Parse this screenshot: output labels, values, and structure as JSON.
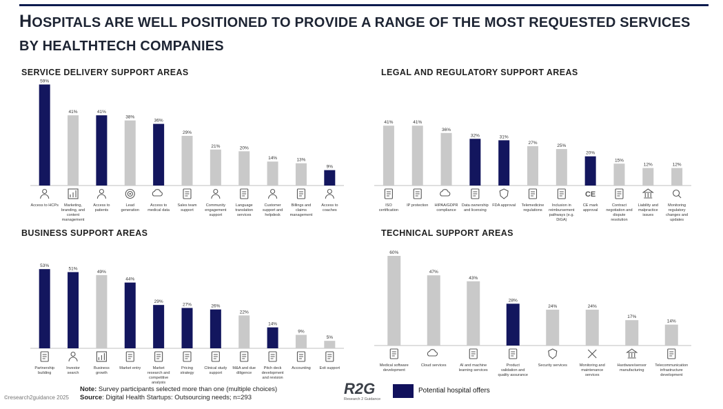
{
  "title": {
    "first_letter": "H",
    "rest": "ospitals are well positioned to provide a range of the most requested services by healthtech companies"
  },
  "colors": {
    "highlight": "#13165e",
    "normal": "#c9c9c9",
    "axis": "#bfbfbf"
  },
  "chart_data": [
    {
      "type": "bar",
      "title": "SERVICE DELIVERY SUPPORT AREAS",
      "categories": [
        "Access to HCPs",
        "Marketing, branding, and content management",
        "Access to patients",
        "Lead generation",
        "Access to medical data",
        "Sales team support",
        "Community engagement support",
        "Language translation services",
        "Customer support and helpdesk",
        "Billings and claims management",
        "Access to coaches"
      ],
      "values": [
        59,
        41,
        41,
        38,
        36,
        29,
        21,
        20,
        14,
        13,
        9
      ],
      "value_labels": [
        "59%",
        "41%",
        "41%",
        "38%",
        "36%",
        "29%",
        "21%",
        "20%",
        "14%",
        "13%",
        "9%"
      ],
      "highlighted": [
        true,
        false,
        true,
        false,
        true,
        false,
        false,
        false,
        false,
        false,
        true
      ],
      "icons": [
        "doctor-icon",
        "megaphone-icon",
        "patient-icon",
        "target-icon",
        "cloud-lock-icon",
        "box-icon",
        "people-icon",
        "translate-icon",
        "headset-icon",
        "invoice-icon",
        "coach-icon"
      ],
      "ylim": [
        0,
        60
      ]
    },
    {
      "type": "bar",
      "title": "LEGAL AND REGULATORY SUPPORT AREAS",
      "categories": [
        "ISO certification",
        "IP protection",
        "HIPAA/GDPR compliance",
        "Data ownership and licensing",
        "FDA approval",
        "Telemedicine regulations",
        "Inclusion in reimbursement pathways (e.g. DiGA)",
        "CE mark approval",
        "Contract negotiation and dispute resolution",
        "Liability and malpractice issues",
        "Monitoring regulatory changes and updates"
      ],
      "values": [
        41,
        41,
        36,
        32,
        31,
        27,
        25,
        20,
        15,
        12,
        12
      ],
      "value_labels": [
        "41%",
        "41%",
        "36%",
        "32%",
        "31%",
        "27%",
        "25%",
        "20%",
        "15%",
        "12%",
        "12%"
      ],
      "highlighted": [
        false,
        false,
        false,
        true,
        true,
        false,
        false,
        true,
        false,
        false,
        false
      ],
      "icons": [
        "certificate-icon",
        "id-card-icon",
        "gdpr-cloud-icon",
        "folder-icon",
        "fda-badge-icon",
        "telemedicine-icon",
        "document-list-icon",
        "ce-mark-icon",
        "handshake-icon",
        "court-icon",
        "magnifier-icon"
      ],
      "ylim": [
        0,
        60
      ]
    },
    {
      "type": "bar",
      "title": "BUSINESS SUPPORT AREAS",
      "categories": [
        "Partnership building",
        "Investor search",
        "Business growth",
        "Market entry",
        "Market research and competitive analysis",
        "Pricing strategy",
        "Clinical study support",
        "M&A and due diligence",
        "Pitch deck development and revision",
        "Accounting",
        "Exit support"
      ],
      "values": [
        53,
        51,
        49,
        44,
        29,
        27,
        26,
        22,
        14,
        9,
        5
      ],
      "value_labels": [
        "53%",
        "51%",
        "49%",
        "44%",
        "29%",
        "27%",
        "26%",
        "22%",
        "14%",
        "9%",
        "5%"
      ],
      "highlighted": [
        true,
        true,
        false,
        true,
        true,
        true,
        true,
        false,
        true,
        false,
        false
      ],
      "icons": [
        "handshake-icon",
        "investor-icon",
        "growth-chart-icon",
        "entry-door-icon",
        "presentation-icon",
        "price-tag-icon",
        "microscope-icon",
        "document-search-icon",
        "pitch-board-icon",
        "calculator-icon",
        "exit-icon"
      ],
      "ylim": [
        0,
        60
      ]
    },
    {
      "type": "bar",
      "title": "TECHNICAL SUPPORT AREAS",
      "categories": [
        "Medical software development",
        "Cloud services",
        "AI and machine learning services",
        "Product validation and quality assurance",
        "Security services",
        "Monitoring and maintenance services",
        "Hardware/sensor manufacturing",
        "Telecommunication infrastructure development"
      ],
      "values": [
        60,
        47,
        43,
        28,
        24,
        24,
        17,
        14
      ],
      "value_labels": [
        "60%",
        "47%",
        "43%",
        "28%",
        "24%",
        "24%",
        "17%",
        "14%"
      ],
      "highlighted": [
        false,
        false,
        false,
        true,
        false,
        false,
        false,
        false
      ],
      "icons": [
        "monitor-heart-icon",
        "cloud-network-icon",
        "robot-icon",
        "checklist-icon",
        "shield-icon",
        "tools-icon",
        "factory-icon",
        "phone-signal-icon"
      ],
      "ylim": [
        0,
        60
      ]
    }
  ],
  "footnote": {
    "note_label": "Note:",
    "note_text": " Survey participants selected more than one (multiple choices)",
    "source_label": "Source",
    "source_text": ": Digital Health Startups: Outsourcing needs; n=293"
  },
  "copyright": "©research2guidance 2025",
  "logo": {
    "main": "R2G",
    "sub": "Research 2 Guidance"
  },
  "legend": {
    "label": "Potential hospital offers"
  }
}
